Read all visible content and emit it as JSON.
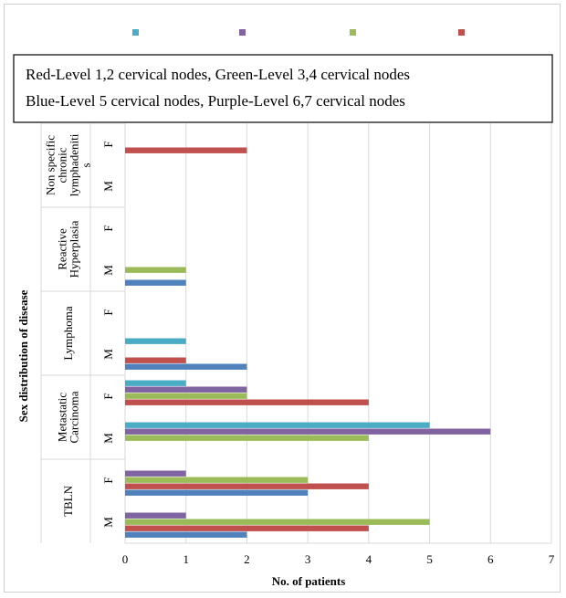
{
  "chart_data": {
    "type": "bar",
    "orientation": "horizontal",
    "legend_box": [
      "Red-Level 1,2 cervical nodes, Green-Level 3,4 cervical nodes",
      "Blue-Level 5 cervical nodes, Purple-Level 6,7 cervical nodes"
    ],
    "legend_swatch_colors": [
      "#4BACC6",
      "#8064A2",
      "#9BBB59",
      "#C0504D"
    ],
    "xlabel": "No. of patients",
    "ylabel": "Sex distribution of disease",
    "xlim": [
      0,
      7
    ],
    "xticks": [
      "0",
      "1",
      "2",
      "3",
      "4",
      "5",
      "6",
      "7"
    ],
    "grid": true,
    "groups": [
      {
        "label": "TBLN",
        "sexes": [
          {
            "sex": "M",
            "bars": [
              {
                "color": "#4F81BD",
                "value": 2
              },
              {
                "color": "#C0504D",
                "value": 4
              },
              {
                "color": "#9BBB59",
                "value": 5
              },
              {
                "color": "#8064A2",
                "value": 1
              },
              {
                "color": "#4BACC6",
                "value": 0
              }
            ]
          },
          {
            "sex": "F",
            "bars": [
              {
                "color": "#4F81BD",
                "value": 3
              },
              {
                "color": "#C0504D",
                "value": 4
              },
              {
                "color": "#9BBB59",
                "value": 3
              },
              {
                "color": "#8064A2",
                "value": 1
              },
              {
                "color": "#4BACC6",
                "value": 0
              }
            ]
          }
        ]
      },
      {
        "label": "Metastatic Carcinoma",
        "sexes": [
          {
            "sex": "M",
            "bars": [
              {
                "color": "#4F81BD",
                "value": 0
              },
              {
                "color": "#C0504D",
                "value": 0
              },
              {
                "color": "#9BBB59",
                "value": 4
              },
              {
                "color": "#8064A2",
                "value": 6
              },
              {
                "color": "#4BACC6",
                "value": 5
              }
            ]
          },
          {
            "sex": "F",
            "bars": [
              {
                "color": "#4F81BD",
                "value": 0
              },
              {
                "color": "#C0504D",
                "value": 4
              },
              {
                "color": "#9BBB59",
                "value": 2
              },
              {
                "color": "#8064A2",
                "value": 2
              },
              {
                "color": "#4BACC6",
                "value": 1
              }
            ]
          }
        ]
      },
      {
        "label": "Lymphoma",
        "sexes": [
          {
            "sex": "M",
            "bars": [
              {
                "color": "#4F81BD",
                "value": 2
              },
              {
                "color": "#C0504D",
                "value": 1
              },
              {
                "color": "#9BBB59",
                "value": 0
              },
              {
                "color": "#8064A2",
                "value": 0
              },
              {
                "color": "#4BACC6",
                "value": 1
              }
            ]
          },
          {
            "sex": "F",
            "bars": [
              {
                "color": "#4F81BD",
                "value": 0
              },
              {
                "color": "#C0504D",
                "value": 0
              },
              {
                "color": "#9BBB59",
                "value": 0
              },
              {
                "color": "#8064A2",
                "value": 0
              },
              {
                "color": "#4BACC6",
                "value": 0
              }
            ]
          }
        ]
      },
      {
        "label": "Reactive Hyperplasia",
        "sexes": [
          {
            "sex": "M",
            "bars": [
              {
                "color": "#4F81BD",
                "value": 1
              },
              {
                "color": "#C0504D",
                "value": 0
              },
              {
                "color": "#9BBB59",
                "value": 1
              },
              {
                "color": "#8064A2",
                "value": 0
              },
              {
                "color": "#4BACC6",
                "value": 0
              }
            ]
          },
          {
            "sex": "F",
            "bars": [
              {
                "color": "#4F81BD",
                "value": 0
              },
              {
                "color": "#C0504D",
                "value": 0
              },
              {
                "color": "#9BBB59",
                "value": 0
              },
              {
                "color": "#8064A2",
                "value": 0
              },
              {
                "color": "#4BACC6",
                "value": 0
              }
            ]
          }
        ]
      },
      {
        "label": "Non specific chronic lymphadenitis",
        "sexes": [
          {
            "sex": "M",
            "bars": [
              {
                "color": "#4F81BD",
                "value": 0
              },
              {
                "color": "#C0504D",
                "value": 0
              },
              {
                "color": "#9BBB59",
                "value": 0
              },
              {
                "color": "#8064A2",
                "value": 0
              },
              {
                "color": "#4BACC6",
                "value": 0
              }
            ]
          },
          {
            "sex": "F",
            "bars": [
              {
                "color": "#4F81BD",
                "value": 0
              },
              {
                "color": "#C0504D",
                "value": 2
              },
              {
                "color": "#9BBB59",
                "value": 0
              },
              {
                "color": "#8064A2",
                "value": 0
              },
              {
                "color": "#4BACC6",
                "value": 0
              }
            ]
          }
        ]
      }
    ]
  }
}
